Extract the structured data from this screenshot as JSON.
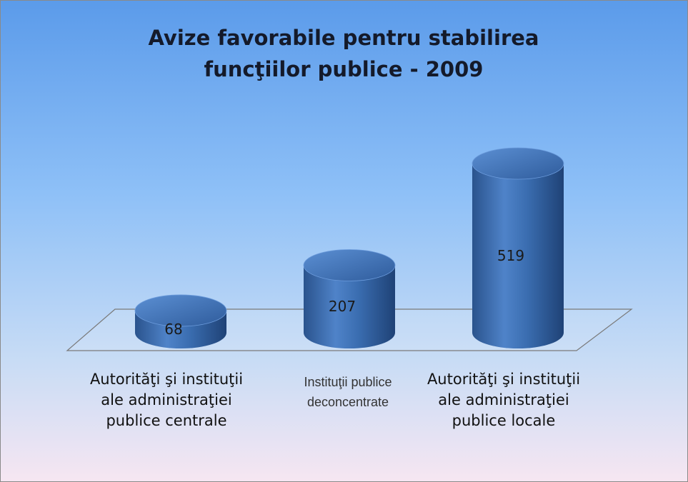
{
  "chart_data": {
    "type": "cylinder",
    "title": "Avize favorabile pentru stabilirea funcţiilor publice - 2009",
    "categories": [
      "Autorităţi şi instituţii ale administraţiei publice centrale",
      "Instituţii publice deconcentrate",
      "Autorităţi şi instituţii ale administraţiei publice locale"
    ],
    "values": [
      68,
      207,
      519
    ],
    "color": "#3a6db0"
  }
}
